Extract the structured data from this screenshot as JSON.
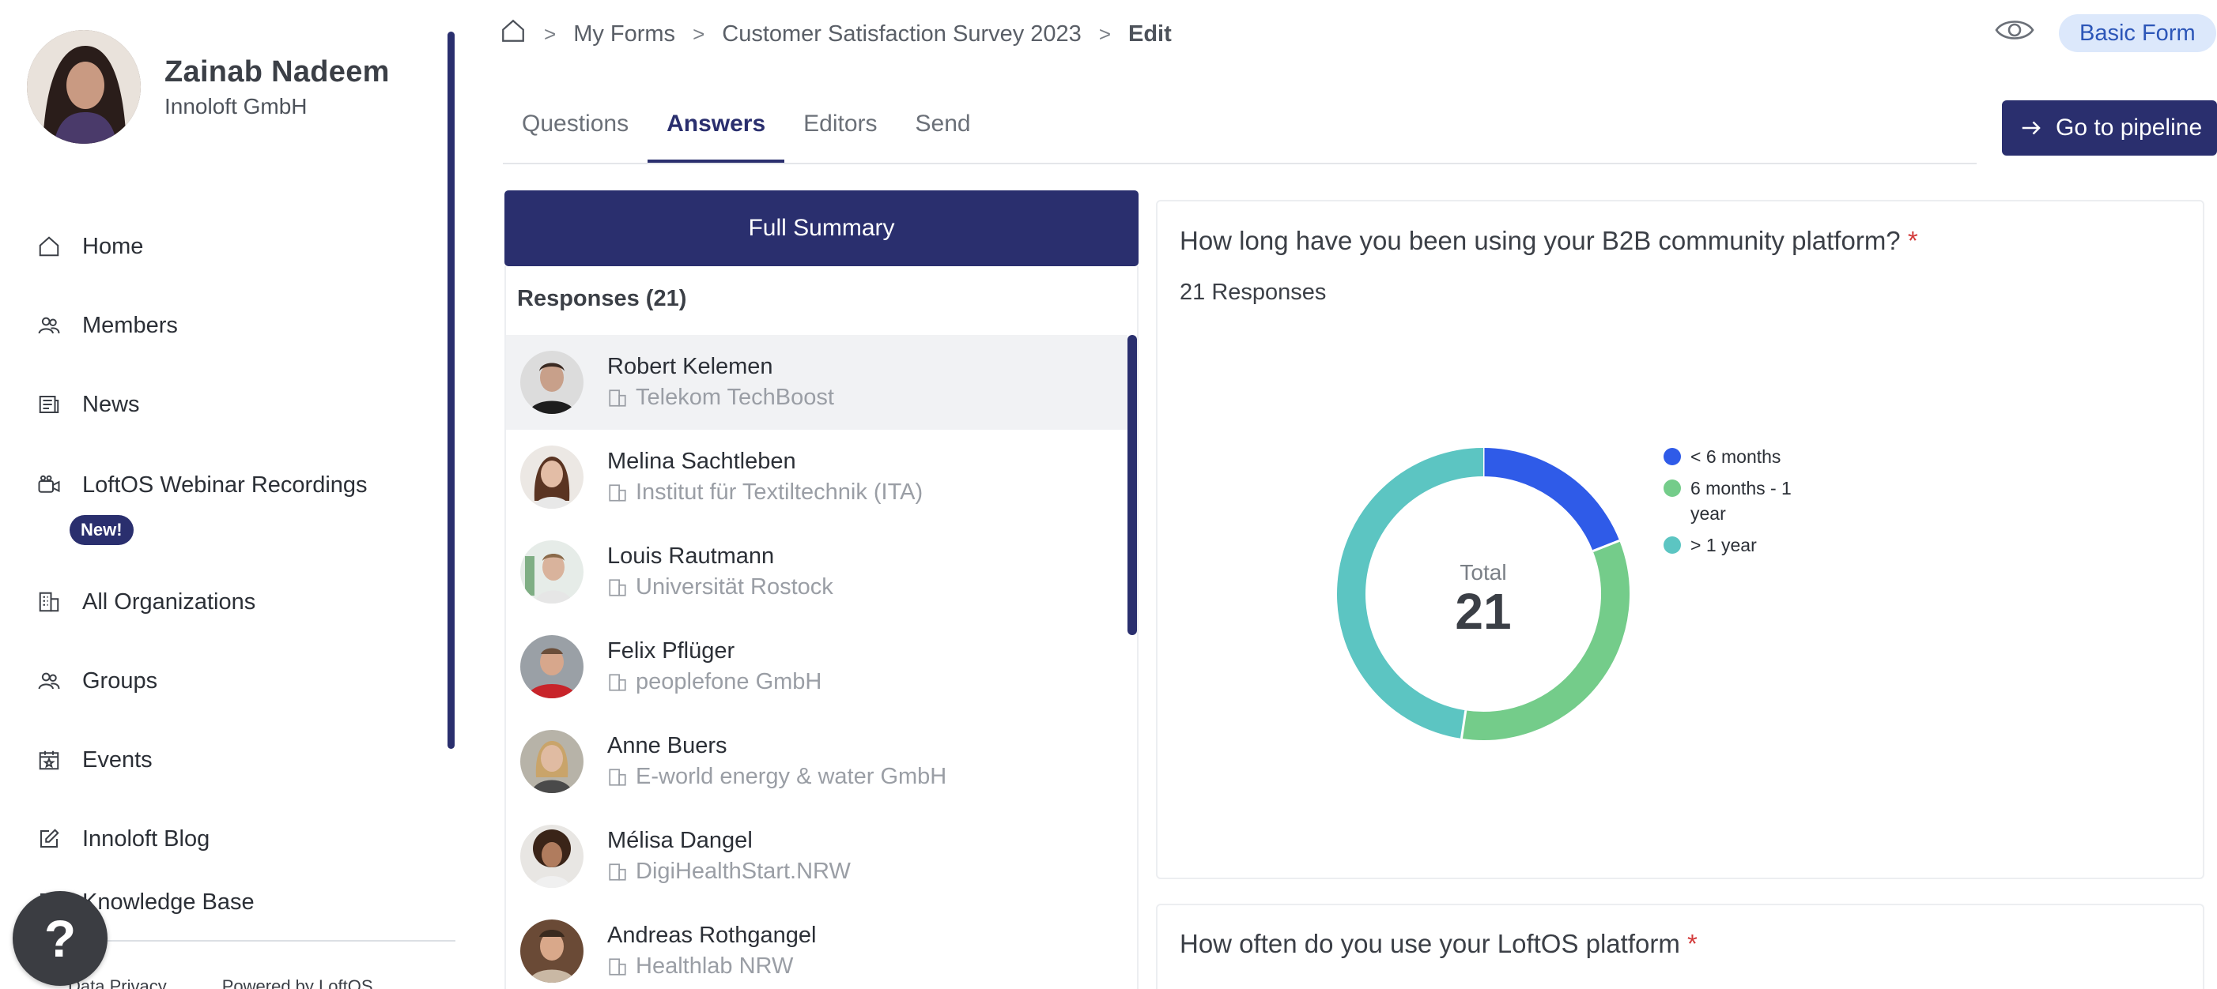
{
  "user": {
    "name": "Zainab Nadeem",
    "org": "Innoloft GmbH"
  },
  "sidebar": {
    "items": [
      {
        "label": "Home",
        "icon": "home-icon"
      },
      {
        "label": "Members",
        "icon": "members-icon"
      },
      {
        "label": "News",
        "icon": "news-icon"
      },
      {
        "label": "LoftOS Webinar Recordings",
        "icon": "video-icon",
        "badge": "New!"
      },
      {
        "label": "All Organizations",
        "icon": "building-icon"
      },
      {
        "label": "Groups",
        "icon": "groups-icon"
      },
      {
        "label": "Events",
        "icon": "calendar-icon"
      },
      {
        "label": "Innoloft Blog",
        "icon": "edit-icon"
      },
      {
        "label": "Knowledge Base",
        "icon": "book-icon"
      }
    ],
    "footer": {
      "privacy": "Data Privacy",
      "powered": "Powered by LoftOS"
    },
    "help_label": "?"
  },
  "breadcrumb": {
    "forms": "My Forms",
    "survey": "Customer Satisfaction Survey 2023",
    "current": "Edit"
  },
  "header": {
    "badge": "Basic Form",
    "pipeline_button": "Go to pipeline"
  },
  "tabs": [
    "Questions",
    "Answers",
    "Editors",
    "Send"
  ],
  "active_tab": "Answers",
  "responses": {
    "summary_button": "Full Summary",
    "header": "Responses (21)",
    "items": [
      {
        "name": "Robert Kelemen",
        "org": "Telekom TechBoost"
      },
      {
        "name": "Melina Sachtleben",
        "org": "Institut für Textiltechnik (ITA)"
      },
      {
        "name": "Louis Rautmann",
        "org": "Universität Rostock"
      },
      {
        "name": "Felix Pflüger",
        "org": "peoplefone GmbH"
      },
      {
        "name": "Anne Buers",
        "org": "E-world energy & water GmbH"
      },
      {
        "name": "Mélisa Dangel",
        "org": "DigiHealthStart.NRW"
      },
      {
        "name": "Andreas Rothgangel",
        "org": "Healthlab NRW"
      }
    ]
  },
  "question1": {
    "title": "How long have you been using your B2B community platform?",
    "required_mark": "*",
    "count": "21 Responses"
  },
  "question2": {
    "title": "How often do you use your LoftOS platform",
    "required_mark": "*"
  },
  "chart_data": {
    "type": "pie",
    "center_label": "Total",
    "center_value": "21",
    "categories": [
      "< 6 months",
      "6 months - 1 year",
      "> 1 year"
    ],
    "values": [
      4,
      7,
      10
    ],
    "colors": [
      "#2f5be8",
      "#74cc8a",
      "#5cc5c2"
    ],
    "legend": "right"
  }
}
